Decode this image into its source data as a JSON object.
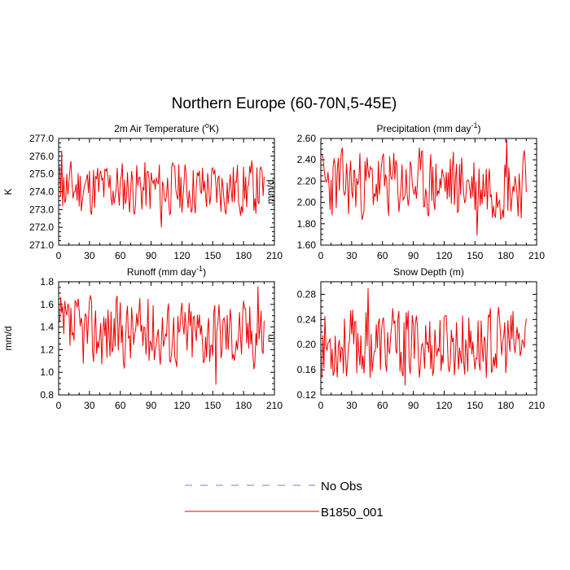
{
  "figure": {
    "title": "Northern Europe (60-70N,5-45E)",
    "colors": {
      "obs": "#7777ee",
      "model": "#ee0000",
      "axis": "#000000",
      "background": "#ffffff"
    },
    "legend": [
      {
        "label": "No Obs",
        "style": "dashed",
        "color": "#7777ee"
      },
      {
        "label": "B1850_001",
        "style": "solid",
        "color": "#ee0000"
      }
    ]
  },
  "chart_data": [
    {
      "type": "line",
      "title": "2m Air Temperature (",
      "title_sup": "o",
      "title_end": "K)",
      "xlabel": "",
      "ylabel": "K",
      "xlim": [
        0,
        210
      ],
      "ylim": [
        271.0,
        277.0
      ],
      "xticks": [
        0,
        30,
        60,
        90,
        120,
        150,
        180,
        210
      ],
      "yticks": [
        271.0,
        272.0,
        273.0,
        274.0,
        275.0,
        276.0,
        277.0
      ],
      "ytick_labels": [
        "271.0",
        "272.0",
        "273.0",
        "274.0",
        "275.0",
        "276.0",
        "277.0"
      ],
      "series": [
        {
          "name": "B1850_001",
          "mean": 274.2,
          "min": 272.0,
          "max": 276.3,
          "seed": 11,
          "peak": 276.3,
          "peak_at": 2,
          "low": 272.0,
          "low_at": 99
        }
      ]
    },
    {
      "type": "line",
      "title": "Precipitation (mm day",
      "title_sup": "-1",
      "title_end": ")",
      "xlabel": "",
      "ylabel": "mm/d",
      "xlim": [
        0,
        210
      ],
      "ylim": [
        1.6,
        2.6
      ],
      "xticks": [
        0,
        30,
        60,
        90,
        120,
        150,
        180,
        210
      ],
      "yticks": [
        1.6,
        1.8,
        2.0,
        2.2,
        2.4,
        2.6
      ],
      "ytick_labels": [
        "1.60",
        "1.80",
        "2.00",
        "2.20",
        "2.40",
        "2.60"
      ],
      "series": [
        {
          "name": "B1850_001",
          "mean": 2.17,
          "min": 1.69,
          "max": 2.59,
          "seed": 23,
          "peak": 2.59,
          "peak_at": 180,
          "low": 1.69,
          "low_at": 151
        }
      ]
    },
    {
      "type": "line",
      "title": "Runoff (mm day",
      "title_sup": "-1",
      "title_end": ")",
      "xlabel": "",
      "ylabel": "mm/d",
      "xlim": [
        0,
        210
      ],
      "ylim": [
        0.8,
        1.8
      ],
      "xticks": [
        0,
        30,
        60,
        90,
        120,
        150,
        180,
        210
      ],
      "yticks": [
        0.8,
        1.0,
        1.2,
        1.4,
        1.6,
        1.8
      ],
      "ytick_labels": [
        "0.8",
        "1.0",
        "1.2",
        "1.4",
        "1.6",
        "1.8"
      ],
      "series": [
        {
          "name": "B1850_001",
          "mean": 1.36,
          "min": 0.89,
          "max": 1.76,
          "seed": 37,
          "peak": 1.76,
          "peak_at": 193,
          "low": 0.89,
          "low_at": 152
        }
      ]
    },
    {
      "type": "line",
      "title": "Snow Depth (m)",
      "title_sup": "",
      "title_end": "",
      "xlabel": "",
      "ylabel": "m",
      "xlim": [
        0,
        210
      ],
      "ylim": [
        0.12,
        0.3
      ],
      "xticks": [
        0,
        30,
        60,
        90,
        120,
        150,
        180,
        210
      ],
      "yticks": [
        0.12,
        0.16,
        0.2,
        0.24,
        0.28
      ],
      "ytick_labels": [
        "0.12",
        "0.16",
        "0.20",
        "0.24",
        "0.28"
      ],
      "series": [
        {
          "name": "B1850_001",
          "mean": 0.2,
          "min": 0.135,
          "max": 0.29,
          "seed": 53,
          "peak": 0.29,
          "peak_at": 45,
          "low": 0.135,
          "low_at": 81
        }
      ]
    }
  ]
}
